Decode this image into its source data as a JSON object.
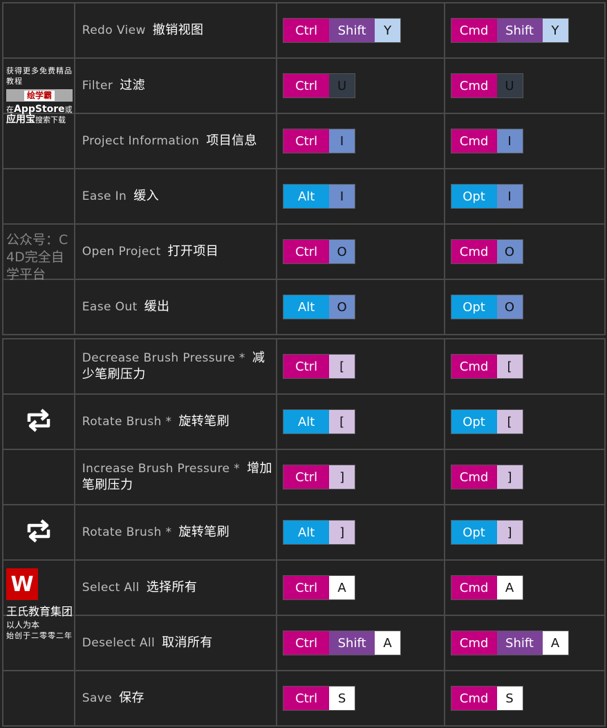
{
  "key_colors": {
    "ctrl": {
      "bg": "#c2007f",
      "fg": "#ffffff"
    },
    "shift": {
      "bg": "#7b4297",
      "fg": "#ffffff"
    },
    "alt": {
      "bg": "#0d9de0",
      "fg": "#ffffff"
    },
    "light_blue": {
      "bg": "#b9d2ef",
      "fg": "#111111"
    },
    "dark": {
      "bg": "#343c48",
      "fg": "#111111"
    },
    "blue": {
      "bg": "#6d8dcc",
      "fg": "#111111"
    },
    "lilac": {
      "bg": "#d3c0e1",
      "fg": "#111111"
    },
    "white": {
      "bg": "#ffffff",
      "fg": "#111111"
    }
  },
  "tables": [
    {
      "rows": [
        {
          "icon": "",
          "en": "Redo View",
          "zh": "撤销视图",
          "win": [
            [
              "Ctrl",
              "ctrl"
            ],
            [
              "Shift",
              "shift"
            ],
            [
              "Y",
              "light_blue"
            ]
          ],
          "mac": [
            [
              "Cmd",
              "ctrl"
            ],
            [
              "Shift",
              "shift"
            ],
            [
              "Y",
              "light_blue"
            ]
          ]
        },
        {
          "icon": "",
          "en": "Filter",
          "zh": "过滤",
          "win": [
            [
              "Ctrl",
              "ctrl"
            ],
            [
              "U",
              "dark"
            ]
          ],
          "mac": [
            [
              "Cmd",
              "ctrl"
            ],
            [
              "U",
              "dark"
            ]
          ]
        },
        {
          "icon": "",
          "en": "Project Information",
          "zh": "项目信息",
          "win": [
            [
              "Ctrl",
              "ctrl"
            ],
            [
              "I",
              "blue"
            ]
          ],
          "mac": [
            [
              "Cmd",
              "ctrl"
            ],
            [
              "I",
              "blue"
            ]
          ]
        },
        {
          "icon": "",
          "en": "Ease In",
          "zh": "缓入",
          "win": [
            [
              "Alt",
              "alt"
            ],
            [
              "I",
              "blue"
            ]
          ],
          "mac": [
            [
              "Opt",
              "alt"
            ],
            [
              "I",
              "blue"
            ]
          ]
        },
        {
          "icon": "",
          "en": "Open Project",
          "zh": "打开项目",
          "win": [
            [
              "Ctrl",
              "ctrl"
            ],
            [
              "O",
              "blue"
            ]
          ],
          "mac": [
            [
              "Cmd",
              "ctrl"
            ],
            [
              "O",
              "blue"
            ]
          ]
        },
        {
          "icon": "",
          "en": "Ease Out",
          "zh": "缓出",
          "win": [
            [
              "Alt",
              "alt"
            ],
            [
              "O",
              "blue"
            ]
          ],
          "mac": [
            [
              "Opt",
              "alt"
            ],
            [
              "O",
              "blue"
            ]
          ]
        }
      ]
    },
    {
      "rows": [
        {
          "icon": "",
          "en": "Decrease Brush Pressure *",
          "zh": "减少笔刷压力",
          "win": [
            [
              "Ctrl",
              "ctrl"
            ],
            [
              "[",
              "lilac"
            ]
          ],
          "mac": [
            [
              "Cmd",
              "ctrl"
            ],
            [
              "[",
              "lilac"
            ]
          ]
        },
        {
          "icon": "rotate-left-icon",
          "en": "Rotate Brush *",
          "zh": "旋转笔刷",
          "win": [
            [
              "Alt",
              "alt"
            ],
            [
              "[",
              "lilac"
            ]
          ],
          "mac": [
            [
              "Opt",
              "alt"
            ],
            [
              "[",
              "lilac"
            ]
          ]
        },
        {
          "icon": "",
          "en": "Increase Brush Pressure *",
          "zh": "增加笔刷压力",
          "win": [
            [
              "Ctrl",
              "ctrl"
            ],
            [
              "]",
              "lilac"
            ]
          ],
          "mac": [
            [
              "Cmd",
              "ctrl"
            ],
            [
              "]",
              "lilac"
            ]
          ]
        },
        {
          "icon": "rotate-right-icon",
          "en": "Rotate Brush *",
          "zh": "旋转笔刷",
          "win": [
            [
              "Alt",
              "alt"
            ],
            [
              "]",
              "lilac"
            ]
          ],
          "mac": [
            [
              "Opt",
              "alt"
            ],
            [
              "]",
              "lilac"
            ]
          ]
        },
        {
          "icon": "",
          "en": "Select All",
          "zh": "选择所有",
          "win": [
            [
              "Ctrl",
              "ctrl"
            ],
            [
              "A",
              "white"
            ]
          ],
          "mac": [
            [
              "Cmd",
              "ctrl"
            ],
            [
              "A",
              "white"
            ]
          ]
        },
        {
          "icon": "",
          "en": "Deselect All",
          "zh": "取消所有",
          "win": [
            [
              "Ctrl",
              "ctrl"
            ],
            [
              "Shift",
              "shift"
            ],
            [
              "A",
              "white"
            ]
          ],
          "mac": [
            [
              "Cmd",
              "ctrl"
            ],
            [
              "Shift",
              "shift"
            ],
            [
              "A",
              "white"
            ]
          ]
        },
        {
          "icon": "",
          "en": "Save",
          "zh": "保存",
          "win": [
            [
              "Ctrl",
              "ctrl"
            ],
            [
              "S",
              "white"
            ]
          ],
          "mac": [
            [
              "Cmd",
              "ctrl"
            ],
            [
              "S",
              "white"
            ]
          ]
        }
      ]
    }
  ],
  "watermark": "公众号：C4D完全自学平台",
  "logo": {
    "name": "王氏教育集团",
    "tagline": "以人为本",
    "sub": "始创于二零零二年"
  },
  "promo": {
    "line1": "获得更多免费精品教程",
    "brand": "绘学霸",
    "line3_pre": "在",
    "store": "AppStore",
    "mid": "或",
    "app": "应用宝",
    "line3_post": "搜索下载"
  }
}
